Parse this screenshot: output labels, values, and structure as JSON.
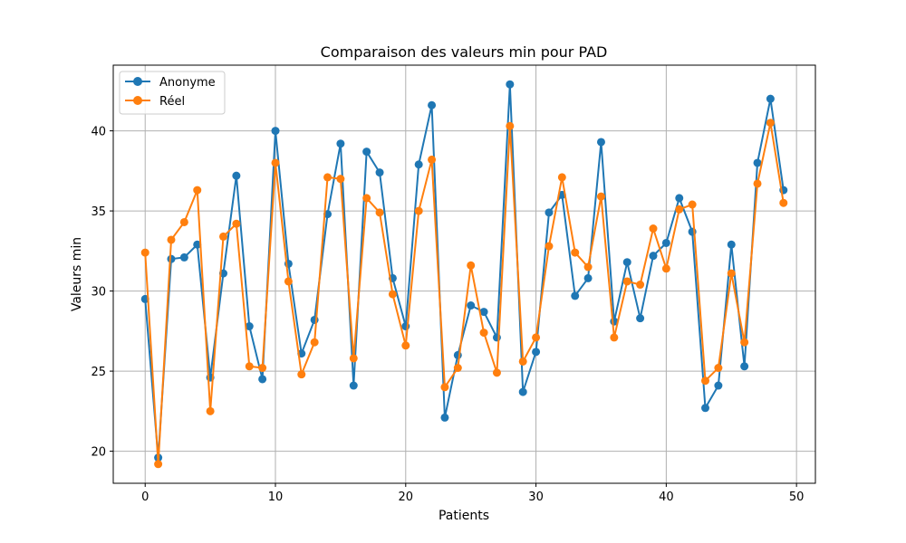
{
  "chart_data": {
    "type": "line",
    "title": "Comparaison des valeurs min pour PAD",
    "xlabel": "Patients",
    "ylabel": "Valeurs min",
    "xlim": [
      -2.45,
      51.45
    ],
    "ylim": [
      18.0,
      44.1
    ],
    "xticks": [
      0,
      10,
      20,
      30,
      40,
      50
    ],
    "yticks": [
      20,
      25,
      30,
      35,
      40
    ],
    "grid": true,
    "legend_position": "upper left",
    "x": [
      0,
      1,
      2,
      3,
      4,
      5,
      6,
      7,
      8,
      9,
      10,
      11,
      12,
      13,
      14,
      15,
      16,
      17,
      18,
      19,
      20,
      21,
      22,
      23,
      24,
      25,
      26,
      27,
      28,
      29,
      30,
      31,
      32,
      33,
      34,
      35,
      36,
      37,
      38,
      39,
      40,
      41,
      42,
      43,
      44,
      45,
      46,
      47,
      48,
      49
    ],
    "series": [
      {
        "name": "Anonyme",
        "color": "#1f77b4",
        "values": [
          29.5,
          19.6,
          32.0,
          32.1,
          32.9,
          24.6,
          31.1,
          37.2,
          27.8,
          24.5,
          40.0,
          31.7,
          26.1,
          28.2,
          34.8,
          39.2,
          24.1,
          38.7,
          37.4,
          30.8,
          27.8,
          37.9,
          41.6,
          22.1,
          26.0,
          29.1,
          28.7,
          27.1,
          42.9,
          23.7,
          26.2,
          34.9,
          36.0,
          29.7,
          30.8,
          39.3,
          28.1,
          31.8,
          28.3,
          32.2,
          33.0,
          35.8,
          33.7,
          22.7,
          24.1,
          32.9,
          25.3,
          38.0,
          42.0,
          36.3
        ]
      },
      {
        "name": "Réel",
        "color": "#ff7f0e",
        "values": [
          32.4,
          19.2,
          33.2,
          34.3,
          36.3,
          22.5,
          33.4,
          34.2,
          25.3,
          25.2,
          38.0,
          30.6,
          24.8,
          26.8,
          37.1,
          37.0,
          25.8,
          35.8,
          34.9,
          29.8,
          26.6,
          35.0,
          38.2,
          24.0,
          25.2,
          31.6,
          27.4,
          24.9,
          40.3,
          25.6,
          27.1,
          32.8,
          37.1,
          32.4,
          31.5,
          35.9,
          27.1,
          30.6,
          30.4,
          33.9,
          31.4,
          35.1,
          35.4,
          24.4,
          25.2,
          31.1,
          26.8,
          36.7,
          40.5,
          35.5
        ]
      }
    ]
  }
}
